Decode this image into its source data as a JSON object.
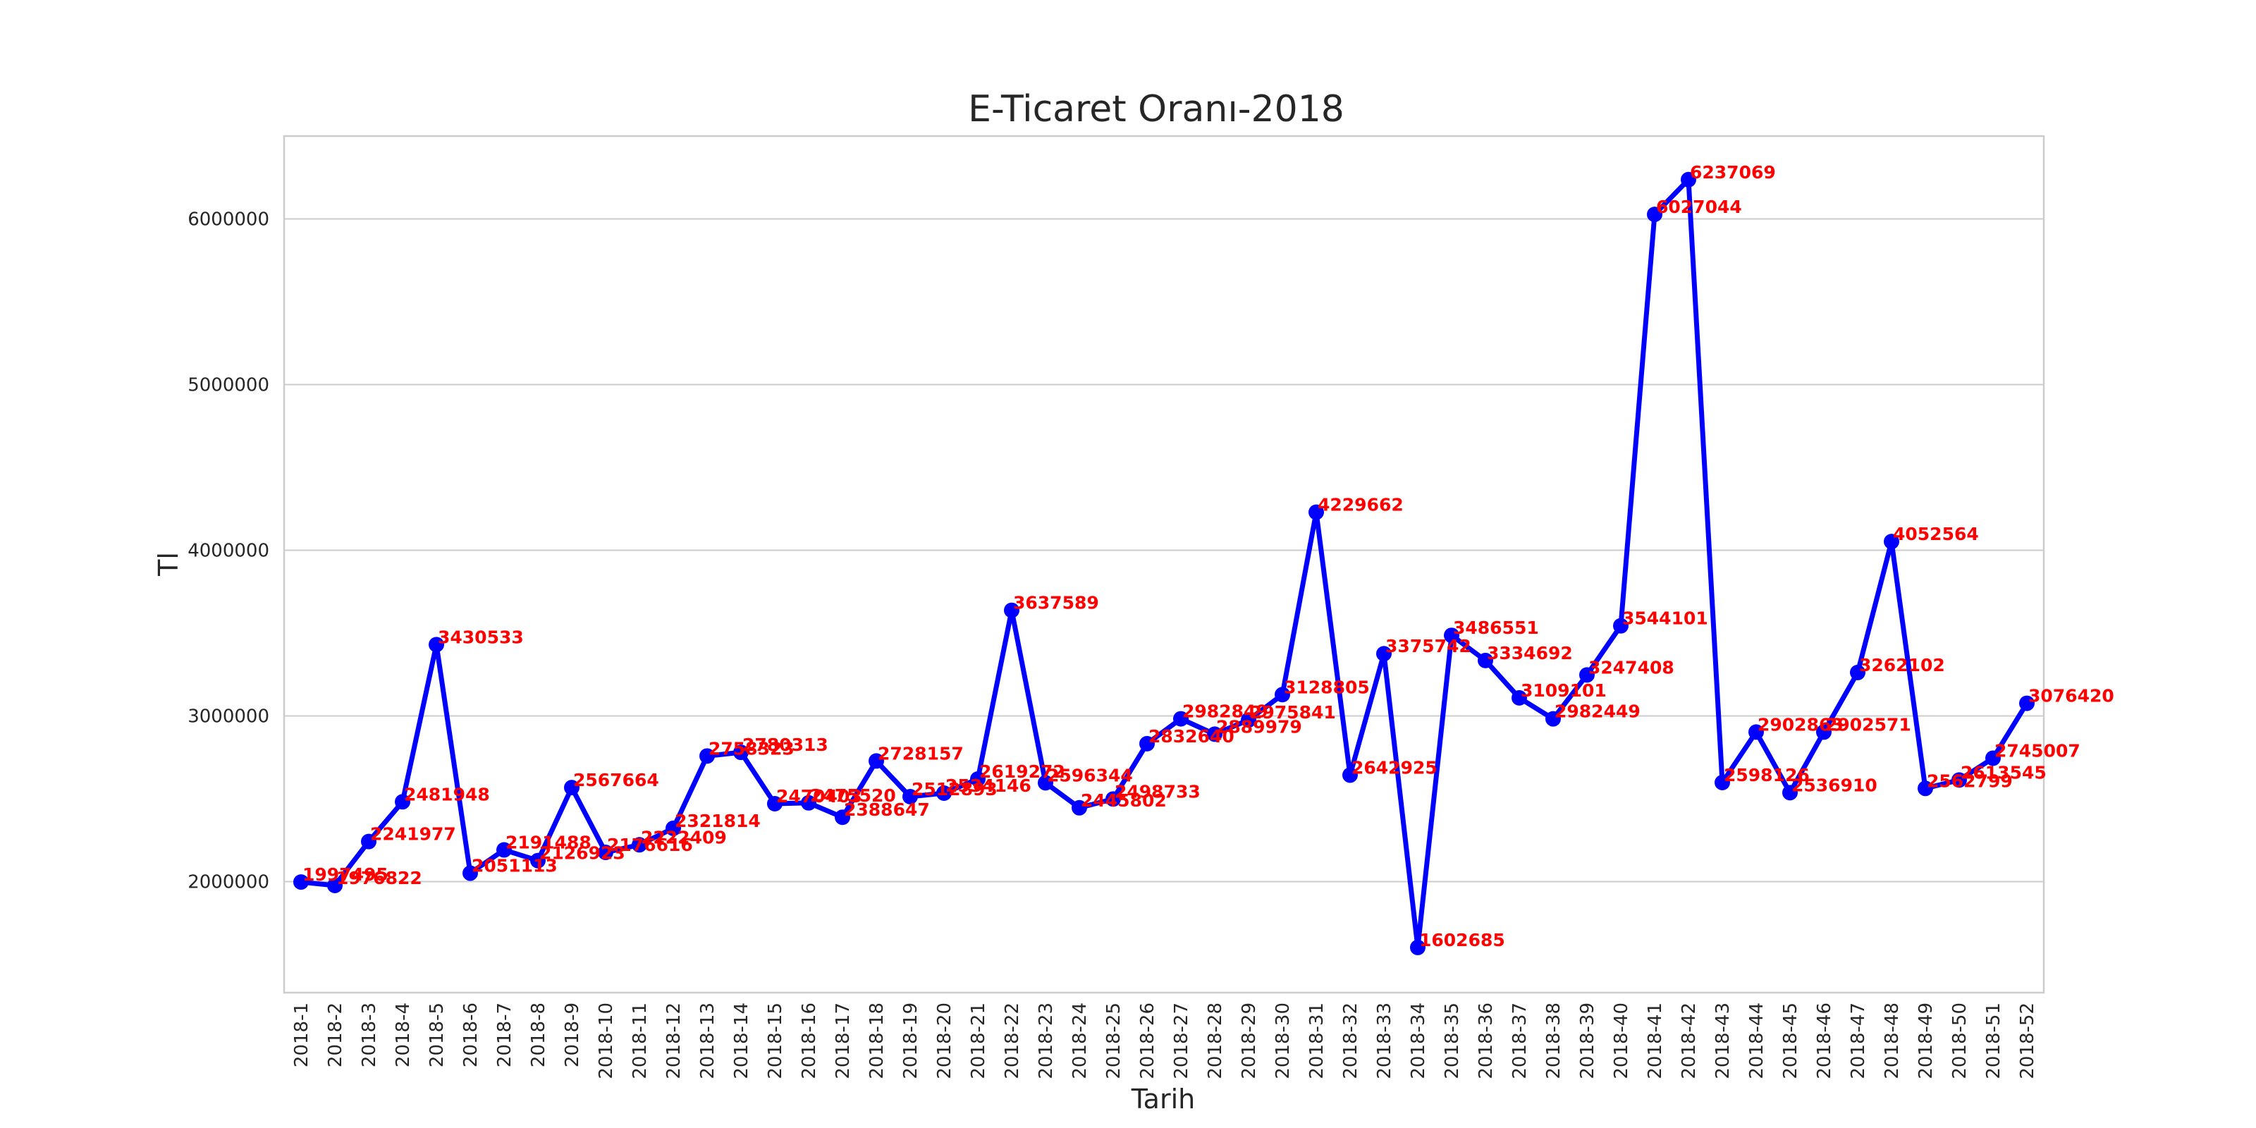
{
  "chart_data": {
    "type": "line",
    "title": "E-Ticaret Oranı-2018",
    "xlabel": "Tarih",
    "ylabel": "Tl",
    "ylim": [
      1330000,
      6500000
    ],
    "yticks": [
      "2000000",
      "3000000",
      "4000000",
      "5000000",
      "6000000"
    ],
    "grid": true,
    "colors": {
      "line": "#0000ff",
      "labels": "#ff0000"
    },
    "categories": [
      "2018-1",
      "2018-2",
      "2018-3",
      "2018-4",
      "2018-5",
      "2018-6",
      "2018-7",
      "2018-8",
      "2018-9",
      "2018-10",
      "2018-11",
      "2018-12",
      "2018-13",
      "2018-14",
      "2018-15",
      "2018-16",
      "2018-17",
      "2018-18",
      "2018-19",
      "2018-20",
      "2018-21",
      "2018-22",
      "2018-23",
      "2018-24",
      "2018-25",
      "2018-26",
      "2018-27",
      "2018-28",
      "2018-29",
      "2018-30",
      "2018-31",
      "2018-32",
      "2018-33",
      "2018-34",
      "2018-35",
      "2018-36",
      "2018-37",
      "2018-38",
      "2018-39",
      "2018-40",
      "2018-41",
      "2018-42",
      "2018-43",
      "2018-44",
      "2018-45",
      "2018-46",
      "2018-47",
      "2018-48",
      "2018-49",
      "2018-50",
      "2018-51",
      "2018-52"
    ],
    "values": [
      1997495,
      1976822,
      2241977,
      2481948,
      3430533,
      2051113,
      2191488,
      2126923,
      2567664,
      2176616,
      2222409,
      2321814,
      2758323,
      2780313,
      2470403,
      2475520,
      2388647,
      2728157,
      2512893,
      2534146,
      2619272,
      3637589,
      2596344,
      2445802,
      2498733,
      2832640,
      2982849,
      2889979,
      2975841,
      3128805,
      4229662,
      2642925,
      3375742,
      1602685,
      3486551,
      3334692,
      3109101,
      2982449,
      3247408,
      3544101,
      6027044,
      6237069,
      2598126,
      2902863,
      2536910,
      2902571,
      3262102,
      4052564,
      2562799,
      2613545,
      2745007,
      3076420
    ],
    "value_labels": [
      "1997495",
      "1976822",
      "2241977",
      "2481948",
      "3430533",
      "2051113",
      "2191488",
      "2126923",
      "2567664",
      "2176616",
      "2222409",
      "2321814",
      "2758323",
      "2780313",
      "2470403",
      "2475520",
      "2388647",
      "2728157",
      "2512893",
      "2534146",
      "2619272",
      "3637589",
      "2596344",
      "2445802",
      "2498733",
      "2832640",
      "2982849",
      "2889979",
      "2975841",
      "3128805",
      "4229662",
      "2642925",
      "3375742",
      "1602685",
      "3486551",
      "3334692",
      "3109101",
      "2982449",
      "3247408",
      "3544101",
      "6027044",
      "6237069",
      "2598126",
      "2902863",
      "2536910",
      "2902571",
      "3262102",
      "4052564",
      "2562799",
      "2613545",
      "2745007",
      "3076420"
    ]
  }
}
